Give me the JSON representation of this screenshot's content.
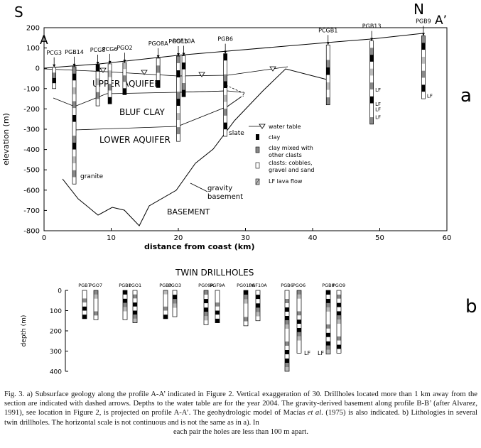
{
  "panel_a": {
    "direction_left": "S",
    "direction_right": "N",
    "profile_start": "A",
    "profile_end": "A’",
    "panel_label": "a",
    "xlabel": "distance from coast (km)",
    "ylabel": "elevation (m)",
    "x_ticks": [
      0,
      10,
      20,
      30,
      40,
      50,
      60
    ],
    "y_ticks": [
      200,
      100,
      0,
      -100,
      -200,
      -300,
      -400,
      -500,
      -600,
      -700,
      -800
    ],
    "xlim": [
      0,
      60
    ],
    "ylim": [
      -800,
      200
    ],
    "labels": {
      "upper_aquifer": "UPPER AQUIFER",
      "bluf_clay": "BLUF CLAY",
      "lower_aquifer": "LOWER AQUIFER",
      "gravity_basement": "gravity basement",
      "basement": "BASEMENT",
      "granite": "granite",
      "slate": "slate",
      "lf": "LF"
    },
    "wells": [
      {
        "name": "PCG3",
        "x": 1.5,
        "top": 5,
        "bottom": -100
      },
      {
        "name": "PGB14",
        "x": 4.5,
        "top": 8,
        "bottom": -570
      },
      {
        "name": "PCG8",
        "x": 8,
        "top": 18,
        "bottom": -185
      },
      {
        "name": "PCG6",
        "x": 9.8,
        "top": 22,
        "bottom": -175
      },
      {
        "name": "PGO2",
        "x": 12,
        "top": 28,
        "bottom": -130
      },
      {
        "name": "PGO8A",
        "x": 17,
        "top": 50,
        "bottom": -95
      },
      {
        "name": "PGO15",
        "x": 20,
        "top": 60,
        "bottom": -360
      },
      {
        "name": "PGF10A",
        "x": 20.8,
        "top": 62,
        "bottom": -140
      },
      {
        "name": "PGB6",
        "x": 27,
        "top": 72,
        "bottom": -335
      },
      {
        "name": "PCGB1",
        "x": 42.3,
        "top": 115,
        "bottom": -180
      },
      {
        "name": "PGB13",
        "x": 48.8,
        "top": 135,
        "bottom": -275
      },
      {
        "name": "PGB9",
        "x": 56.5,
        "top": 160,
        "bottom": -150
      }
    ],
    "legend": [
      {
        "symbol": "triangle",
        "label": "water table"
      },
      {
        "symbol": "black",
        "label": "clay"
      },
      {
        "symbol": "gray",
        "label": "clay mixed with other clasts"
      },
      {
        "symbol": "white",
        "label": "clasts: cobbles, gravel and sand"
      },
      {
        "symbol": "hatched",
        "label": "LF lava flow"
      }
    ]
  },
  "panel_b": {
    "title": "TWIN DRILLHOLES",
    "panel_label": "b",
    "ylabel": "depth (m)",
    "y_ticks": [
      0,
      100,
      200,
      300,
      400
    ],
    "ylim": [
      0,
      400
    ],
    "lf": "LF",
    "holes": [
      {
        "name": "PGB7",
        "depth": 140
      },
      {
        "name": "PGO7",
        "depth": 145
      },
      {
        "name": "PGB1",
        "depth": 145
      },
      {
        "name": "PGO1",
        "depth": 160
      },
      {
        "name": "PGB3",
        "depth": 140
      },
      {
        "name": "PGO3",
        "depth": 130
      },
      {
        "name": "PG09A",
        "depth": 170
      },
      {
        "name": "PGF9A",
        "depth": 160
      },
      {
        "name": "PG010A",
        "depth": 175
      },
      {
        "name": "PGF10A",
        "depth": 150
      },
      {
        "name": "PGB6",
        "depth": 400
      },
      {
        "name": "PGO6",
        "depth": 310
      },
      {
        "name": "PGB8",
        "depth": 315
      },
      {
        "name": "PGO9",
        "depth": 310
      }
    ]
  },
  "caption": {
    "line1": "Fig. 3. a) Subsurface geology along the profile A-A’ indicated in Figure 2. Vertical exaggeration of 30. Drillholes located more than 1 km away from the section are indicated with dashed arrows. Depths to the water table are for the year 2004. The gravity-derived basement along profile B-B’ (after Alvarez, 1991), see location in Figure 2, is projected on profile A-A’. The geohydrologic model of Macías ",
    "et_al": "et al",
    "line2": ". (1975) is also indicated. b) Lithologies in several twin drillholes. The horizontal scale is not continuous and is not the same as in a). In",
    "line3": "each pair the holes are less than 100 m apart."
  }
}
